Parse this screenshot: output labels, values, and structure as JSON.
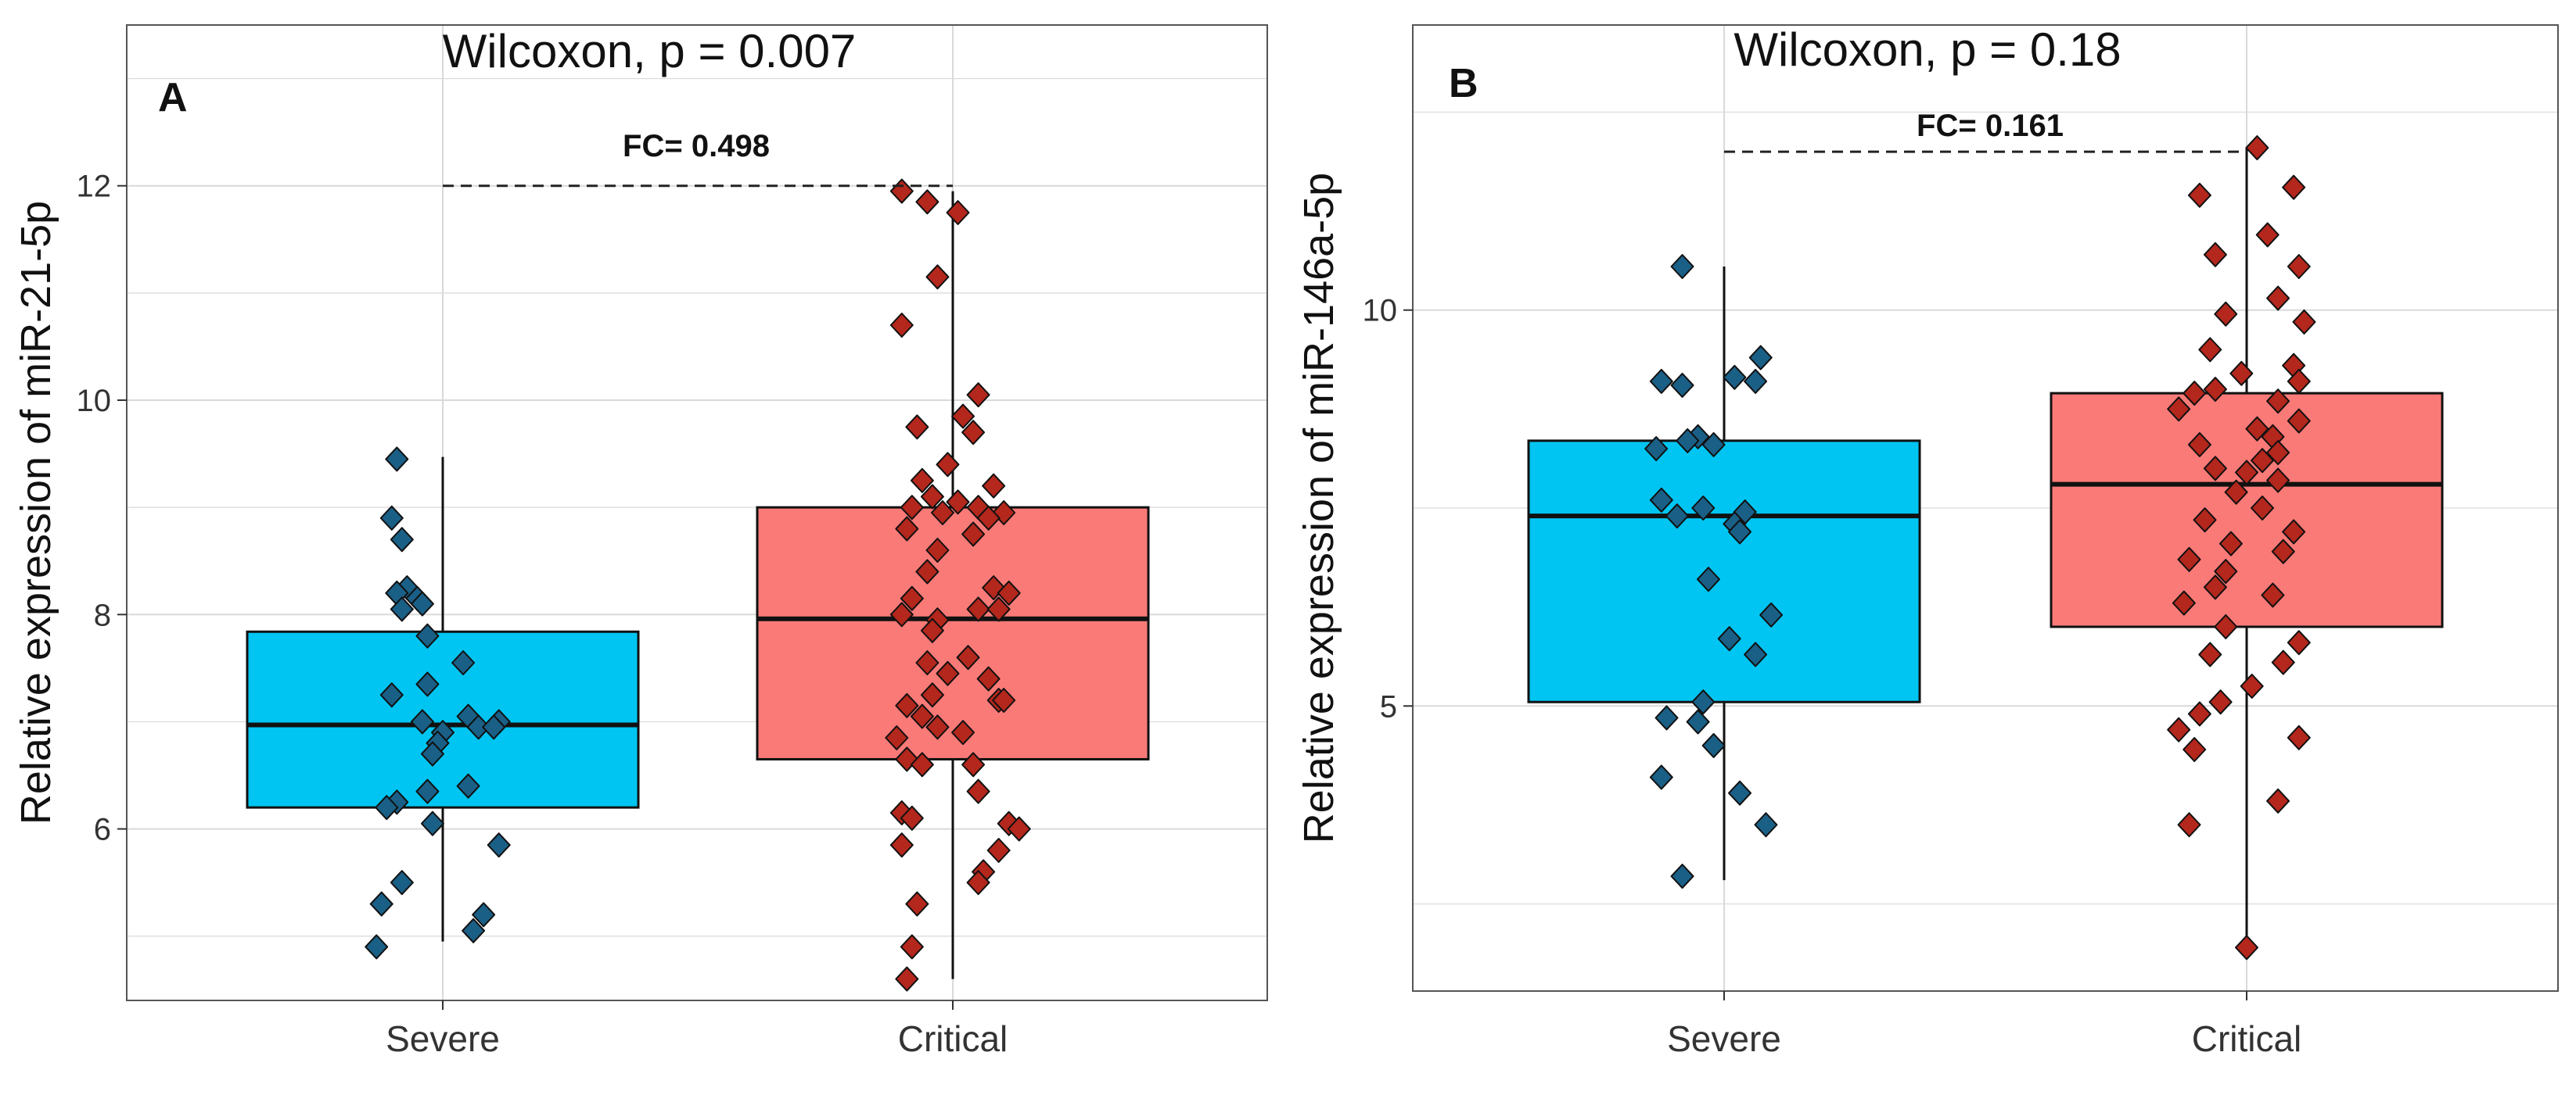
{
  "figure": {
    "panels": [
      {
        "letter": "A",
        "stat_label": "Wilcoxon, p = 0.007",
        "fc_prefix": "FC= ",
        "fc_value": "0.498"
      },
      {
        "letter": "B",
        "stat_label": "Wilcoxon, p = 0.18",
        "fc_prefix": "FC= ",
        "fc_value": "0.161"
      }
    ]
  },
  "colors": {
    "severe_box": "#00c5f2",
    "critical_box": "#fa7a78",
    "severe_point": "#1a5f86",
    "critical_point": "#b3271c",
    "grid": "#d9d9d9",
    "axis": "#333333"
  },
  "chart_data": [
    {
      "type": "boxplot",
      "panel": "A",
      "title": "Wilcoxon, p = 0.007",
      "xlabel": "",
      "ylabel": "Relative expression of miR-21-5p",
      "categories": [
        "Severe",
        "Critical"
      ],
      "ylim": [
        4.4,
        13.5
      ],
      "yticks": [
        6,
        8,
        10,
        12
      ],
      "grid": true,
      "comparison": {
        "y": 12,
        "fc": 0.498
      },
      "boxes": [
        {
          "name": "Severe",
          "q1": 6.2,
          "median": 6.97,
          "q3": 7.84,
          "whisker_low": 4.95,
          "whisker_high": 9.47
        },
        {
          "name": "Critical",
          "q1": 6.65,
          "median": 7.96,
          "q3": 9.0,
          "whisker_low": 4.6,
          "whisker_high": 11.95
        }
      ],
      "points": [
        {
          "name": "Severe",
          "values": [
            9.45,
            8.9,
            8.7,
            8.25,
            8.2,
            8.15,
            8.1,
            8.05,
            7.8,
            7.55,
            7.35,
            7.25,
            7.05,
            7.0,
            7.0,
            6.95,
            6.95,
            6.9,
            6.8,
            6.7,
            6.4,
            6.35,
            6.25,
            6.2,
            6.05,
            5.85,
            5.5,
            5.3,
            5.2,
            5.05,
            4.9
          ],
          "offsets": [
            -0.09,
            -0.1,
            -0.08,
            -0.07,
            -0.09,
            -0.05,
            -0.04,
            -0.08,
            -0.03,
            0.04,
            -0.03,
            -0.1,
            0.05,
            -0.04,
            0.11,
            0.07,
            0.1,
            0.0,
            -0.01,
            -0.02,
            0.05,
            -0.03,
            -0.09,
            -0.11,
            -0.02,
            0.11,
            -0.08,
            -0.12,
            0.08,
            0.06,
            -0.13
          ]
        },
        {
          "name": "Critical",
          "values": [
            11.95,
            11.85,
            11.75,
            11.15,
            10.7,
            10.05,
            9.85,
            9.75,
            9.7,
            9.4,
            9.25,
            9.2,
            9.1,
            9.05,
            9.0,
            9.0,
            8.95,
            8.95,
            8.9,
            8.8,
            8.75,
            8.6,
            8.4,
            8.25,
            8.2,
            8.15,
            8.05,
            8.05,
            8.0,
            7.95,
            7.85,
            7.6,
            7.55,
            7.45,
            7.4,
            7.25,
            7.2,
            7.2,
            7.15,
            7.05,
            6.95,
            6.9,
            6.85,
            6.65,
            6.6,
            6.6,
            6.35,
            6.15,
            6.1,
            6.05,
            6.0,
            5.85,
            5.8,
            5.6,
            5.5,
            5.3,
            4.9,
            4.6
          ],
          "offsets": [
            -0.1,
            -0.05,
            0.01,
            -0.03,
            -0.1,
            0.05,
            0.02,
            -0.07,
            0.04,
            -0.01,
            -0.06,
            0.08,
            -0.04,
            0.01,
            0.05,
            -0.08,
            -0.02,
            0.1,
            0.07,
            -0.09,
            0.04,
            -0.03,
            -0.05,
            0.08,
            0.11,
            -0.08,
            0.05,
            0.09,
            -0.1,
            -0.03,
            -0.04,
            0.03,
            -0.05,
            -0.01,
            0.07,
            -0.04,
            0.09,
            0.1,
            -0.09,
            -0.06,
            -0.03,
            0.02,
            -0.11,
            -0.09,
            -0.06,
            0.04,
            0.05,
            -0.1,
            -0.08,
            0.11,
            0.13,
            -0.1,
            0.09,
            0.06,
            0.05,
            -0.07,
            -0.08,
            -0.09
          ]
        }
      ]
    },
    {
      "type": "boxplot",
      "panel": "B",
      "title": "Wilcoxon, p = 0.18",
      "xlabel": "",
      "ylabel": "Relative expression of miR-146a-5p",
      "categories": [
        "Severe",
        "Critical"
      ],
      "ylim": [
        1.4,
        13.6
      ],
      "yticks": [
        5,
        10
      ],
      "grid": true,
      "comparison": {
        "y": 12.0,
        "fc": 0.161
      },
      "boxes": [
        {
          "name": "Severe",
          "q1": 5.05,
          "median": 7.4,
          "q3": 8.35,
          "whisker_low": 2.8,
          "whisker_high": 10.55
        },
        {
          "name": "Critical",
          "q1": 6.0,
          "median": 7.8,
          "q3": 8.95,
          "whisker_low": 1.95,
          "whisker_high": 12.05
        }
      ],
      "points": [
        {
          "name": "Severe",
          "values": [
            10.55,
            9.4,
            9.15,
            9.1,
            9.1,
            9.05,
            8.4,
            8.35,
            8.3,
            8.25,
            7.6,
            7.5,
            7.45,
            7.4,
            7.3,
            7.2,
            6.6,
            6.15,
            5.85,
            5.65,
            5.05,
            4.85,
            4.8,
            4.5,
            4.1,
            3.9,
            3.5,
            2.85
          ],
          "offsets": [
            -0.08,
            0.07,
            0.02,
            -0.12,
            0.06,
            -0.08,
            -0.05,
            -0.07,
            -0.02,
            -0.13,
            -0.12,
            -0.04,
            0.04,
            -0.09,
            0.02,
            0.03,
            -0.03,
            0.09,
            0.01,
            0.06,
            -0.04,
            -0.11,
            -0.05,
            -0.02,
            -0.12,
            0.03,
            0.08,
            -0.08
          ]
        },
        {
          "name": "Critical",
          "values": [
            12.05,
            11.55,
            11.45,
            10.95,
            10.7,
            10.55,
            10.15,
            9.95,
            9.85,
            9.5,
            9.3,
            9.2,
            9.1,
            9.0,
            8.95,
            8.85,
            8.75,
            8.6,
            8.5,
            8.4,
            8.3,
            8.2,
            8.1,
            8.0,
            7.95,
            7.85,
            7.7,
            7.5,
            7.35,
            7.2,
            7.05,
            6.95,
            6.85,
            6.7,
            6.5,
            6.4,
            6.3,
            6.0,
            5.8,
            5.65,
            5.55,
            5.25,
            5.05,
            4.9,
            4.7,
            4.6,
            4.45,
            3.8,
            3.5,
            1.95
          ],
          "offsets": [
            0.02,
            0.09,
            -0.09,
            0.04,
            -0.06,
            0.1,
            0.06,
            -0.04,
            0.11,
            -0.07,
            0.09,
            -0.01,
            0.1,
            -0.06,
            -0.1,
            0.06,
            -0.13,
            0.1,
            0.02,
            0.05,
            -0.09,
            0.06,
            0.03,
            -0.06,
            0.0,
            0.06,
            -0.02,
            0.03,
            -0.08,
            0.09,
            -0.03,
            0.07,
            -0.11,
            -0.04,
            -0.06,
            0.05,
            -0.12,
            -0.04,
            0.1,
            -0.07,
            0.07,
            0.01,
            -0.05,
            -0.09,
            -0.13,
            0.1,
            -0.1,
            0.06,
            -0.11,
            0.0
          ]
        }
      ]
    }
  ]
}
